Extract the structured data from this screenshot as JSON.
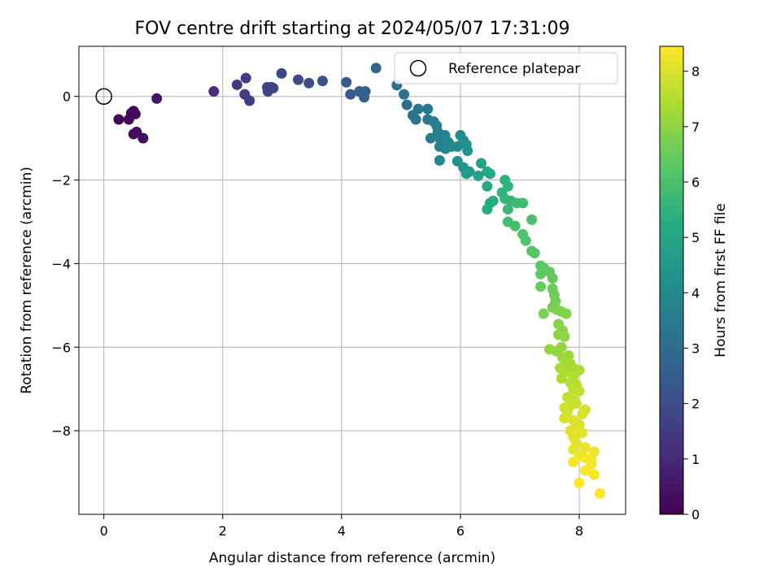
{
  "chart_data": {
    "type": "scatter",
    "title": "FOV centre drift starting at 2024/05/07 17:31:09",
    "xlabel": "Angular distance from reference (arcmin)",
    "ylabel": "Rotation from reference (arcmin)",
    "xlim": [
      -0.42,
      8.78
    ],
    "ylim": [
      -10.0,
      1.2
    ],
    "xticks": [
      0,
      2,
      4,
      6,
      8
    ],
    "yticks": [
      0,
      -2,
      -4,
      -6,
      -8
    ],
    "xtick_labels": [
      "0",
      "2",
      "4",
      "6",
      "8"
    ],
    "ytick_labels": [
      "0",
      "−2",
      "−4",
      "−6",
      "−8"
    ],
    "grid": true,
    "legend": {
      "position": "top-right",
      "entries": [
        "Reference platepar"
      ]
    },
    "reference_point": {
      "x": 0,
      "y": 0
    },
    "colorbar": {
      "label": "Hours from first FF file",
      "range": [
        0,
        8.45
      ],
      "ticks": [
        0,
        1,
        2,
        3,
        4,
        5,
        6,
        7,
        8
      ],
      "tick_labels": [
        "0",
        "1",
        "2",
        "3",
        "4",
        "5",
        "6",
        "7",
        "8"
      ],
      "colormap": "viridis"
    },
    "points": [
      {
        "x": 0.25,
        "y": -0.55,
        "t": 0.1
      },
      {
        "x": 0.42,
        "y": -0.55,
        "t": 0.12
      },
      {
        "x": 0.46,
        "y": -0.4,
        "t": 0.15
      },
      {
        "x": 0.5,
        "y": -0.35,
        "t": 0.17
      },
      {
        "x": 0.53,
        "y": -0.42,
        "t": 0.2
      },
      {
        "x": 0.5,
        "y": -0.9,
        "t": 0.22
      },
      {
        "x": 0.55,
        "y": -0.85,
        "t": 0.25
      },
      {
        "x": 0.66,
        "y": -1.0,
        "t": 0.3
      },
      {
        "x": 0.89,
        "y": -0.05,
        "t": 0.45
      },
      {
        "x": 1.85,
        "y": 0.12,
        "t": 1.1
      },
      {
        "x": 2.24,
        "y": 0.28,
        "t": 1.4
      },
      {
        "x": 2.39,
        "y": 0.44,
        "t": 1.5
      },
      {
        "x": 2.37,
        "y": 0.05,
        "t": 1.5
      },
      {
        "x": 2.45,
        "y": -0.1,
        "t": 1.55
      },
      {
        "x": 2.75,
        "y": 0.22,
        "t": 1.65
      },
      {
        "x": 2.82,
        "y": 0.22,
        "t": 1.7
      },
      {
        "x": 2.76,
        "y": 0.12,
        "t": 1.7
      },
      {
        "x": 2.85,
        "y": 0.2,
        "t": 1.75
      },
      {
        "x": 2.99,
        "y": 0.55,
        "t": 1.85
      },
      {
        "x": 3.27,
        "y": 0.4,
        "t": 1.95
      },
      {
        "x": 3.45,
        "y": 0.32,
        "t": 2.05
      },
      {
        "x": 3.68,
        "y": 0.37,
        "t": 2.15
      },
      {
        "x": 4.08,
        "y": 0.34,
        "t": 2.4
      },
      {
        "x": 4.15,
        "y": 0.05,
        "t": 2.45
      },
      {
        "x": 4.3,
        "y": 0.12,
        "t": 2.55
      },
      {
        "x": 4.4,
        "y": 0.12,
        "t": 2.6
      },
      {
        "x": 4.38,
        "y": -0.02,
        "t": 2.6
      },
      {
        "x": 4.58,
        "y": 0.68,
        "t": 2.8
      },
      {
        "x": 4.93,
        "y": 0.27,
        "t": 3.05
      },
      {
        "x": 5.05,
        "y": 0.05,
        "t": 3.1
      },
      {
        "x": 5.1,
        "y": -0.2,
        "t": 3.15
      },
      {
        "x": 5.2,
        "y": -0.45,
        "t": 3.2
      },
      {
        "x": 5.25,
        "y": -0.55,
        "t": 3.25
      },
      {
        "x": 5.29,
        "y": -0.3,
        "t": 3.3
      },
      {
        "x": 5.45,
        "y": -0.3,
        "t": 3.4
      },
      {
        "x": 5.45,
        "y": -0.55,
        "t": 3.4
      },
      {
        "x": 5.55,
        "y": -0.6,
        "t": 3.5
      },
      {
        "x": 5.6,
        "y": -0.7,
        "t": 3.55
      },
      {
        "x": 5.62,
        "y": -0.85,
        "t": 3.6
      },
      {
        "x": 5.5,
        "y": -1.0,
        "t": 3.6
      },
      {
        "x": 5.65,
        "y": -1.0,
        "t": 3.7
      },
      {
        "x": 5.7,
        "y": -1.05,
        "t": 3.75
      },
      {
        "x": 5.65,
        "y": -1.2,
        "t": 3.75
      },
      {
        "x": 5.74,
        "y": -0.93,
        "t": 3.8
      },
      {
        "x": 5.8,
        "y": -1.1,
        "t": 3.85
      },
      {
        "x": 5.75,
        "y": -1.25,
        "t": 3.85
      },
      {
        "x": 5.65,
        "y": -1.53,
        "t": 3.9
      },
      {
        "x": 5.85,
        "y": -1.2,
        "t": 3.95
      },
      {
        "x": 5.95,
        "y": -1.2,
        "t": 4.05
      },
      {
        "x": 6.0,
        "y": -0.93,
        "t": 4.1
      },
      {
        "x": 6.05,
        "y": -1.05,
        "t": 4.2
      },
      {
        "x": 6.1,
        "y": -1.15,
        "t": 4.3
      },
      {
        "x": 6.12,
        "y": -1.3,
        "t": 4.4
      },
      {
        "x": 5.95,
        "y": -1.55,
        "t": 4.4
      },
      {
        "x": 6.05,
        "y": -1.7,
        "t": 4.5
      },
      {
        "x": 6.15,
        "y": -1.8,
        "t": 4.6
      },
      {
        "x": 6.1,
        "y": -1.85,
        "t": 4.65
      },
      {
        "x": 6.3,
        "y": -1.9,
        "t": 4.8
      },
      {
        "x": 6.35,
        "y": -1.6,
        "t": 4.9
      },
      {
        "x": 6.45,
        "y": -1.8,
        "t": 5.0
      },
      {
        "x": 6.5,
        "y": -1.85,
        "t": 5.05
      },
      {
        "x": 6.45,
        "y": -2.15,
        "t": 5.1
      },
      {
        "x": 6.5,
        "y": -2.55,
        "t": 5.2
      },
      {
        "x": 6.45,
        "y": -2.7,
        "t": 5.25
      },
      {
        "x": 6.55,
        "y": -2.5,
        "t": 5.3
      },
      {
        "x": 6.75,
        "y": -2.0,
        "t": 5.45
      },
      {
        "x": 6.8,
        "y": -2.15,
        "t": 5.5
      },
      {
        "x": 6.7,
        "y": -2.3,
        "t": 5.5
      },
      {
        "x": 6.75,
        "y": -2.45,
        "t": 5.55
      },
      {
        "x": 6.85,
        "y": -2.5,
        "t": 5.6
      },
      {
        "x": 6.8,
        "y": -2.7,
        "t": 5.65
      },
      {
        "x": 6.95,
        "y": -2.55,
        "t": 5.75
      },
      {
        "x": 7.05,
        "y": -2.55,
        "t": 5.8
      },
      {
        "x": 6.8,
        "y": -3.0,
        "t": 5.85
      },
      {
        "x": 6.92,
        "y": -3.1,
        "t": 5.9
      },
      {
        "x": 7.2,
        "y": -2.95,
        "t": 6.0
      },
      {
        "x": 7.05,
        "y": -3.3,
        "t": 6.05
      },
      {
        "x": 7.1,
        "y": -3.45,
        "t": 6.1
      },
      {
        "x": 7.2,
        "y": -3.7,
        "t": 6.15
      },
      {
        "x": 7.25,
        "y": -3.75,
        "t": 6.2
      },
      {
        "x": 7.35,
        "y": -4.05,
        "t": 6.25
      },
      {
        "x": 7.4,
        "y": -4.1,
        "t": 6.3
      },
      {
        "x": 7.35,
        "y": -4.25,
        "t": 6.35
      },
      {
        "x": 7.5,
        "y": -4.2,
        "t": 6.4
      },
      {
        "x": 7.55,
        "y": -4.35,
        "t": 6.45
      },
      {
        "x": 7.35,
        "y": -4.55,
        "t": 6.5
      },
      {
        "x": 7.55,
        "y": -4.6,
        "t": 6.55
      },
      {
        "x": 7.58,
        "y": -4.75,
        "t": 6.6
      },
      {
        "x": 7.6,
        "y": -4.9,
        "t": 6.65
      },
      {
        "x": 7.55,
        "y": -5.05,
        "t": 6.7
      },
      {
        "x": 7.62,
        "y": -5.1,
        "t": 6.75
      },
      {
        "x": 7.4,
        "y": -5.2,
        "t": 6.75
      },
      {
        "x": 7.7,
        "y": -5.15,
        "t": 6.8
      },
      {
        "x": 7.78,
        "y": -5.2,
        "t": 6.85
      },
      {
        "x": 7.65,
        "y": -5.45,
        "t": 6.9
      },
      {
        "x": 7.72,
        "y": -5.6,
        "t": 6.95
      },
      {
        "x": 7.65,
        "y": -5.7,
        "t": 7.0
      },
      {
        "x": 7.75,
        "y": -5.75,
        "t": 7.0
      },
      {
        "x": 7.5,
        "y": -6.05,
        "t": 7.05
      },
      {
        "x": 7.62,
        "y": -6.1,
        "t": 7.1
      },
      {
        "x": 7.7,
        "y": -6.0,
        "t": 7.1
      },
      {
        "x": 7.72,
        "y": -6.25,
        "t": 7.15
      },
      {
        "x": 7.82,
        "y": -6.2,
        "t": 7.2
      },
      {
        "x": 7.78,
        "y": -6.35,
        "t": 7.25
      },
      {
        "x": 7.85,
        "y": -6.4,
        "t": 7.3
      },
      {
        "x": 7.68,
        "y": -6.5,
        "t": 7.3
      },
      {
        "x": 7.9,
        "y": -6.5,
        "t": 7.35
      },
      {
        "x": 8.0,
        "y": -6.55,
        "t": 7.4
      },
      {
        "x": 7.75,
        "y": -6.6,
        "t": 7.4
      },
      {
        "x": 7.7,
        "y": -6.75,
        "t": 7.45
      },
      {
        "x": 7.9,
        "y": -6.7,
        "t": 7.5
      },
      {
        "x": 7.85,
        "y": -6.85,
        "t": 7.55
      },
      {
        "x": 7.95,
        "y": -6.9,
        "t": 7.6
      },
      {
        "x": 7.9,
        "y": -7.0,
        "t": 7.65
      },
      {
        "x": 8.0,
        "y": -7.05,
        "t": 7.7
      },
      {
        "x": 7.8,
        "y": -7.2,
        "t": 7.7
      },
      {
        "x": 7.9,
        "y": -7.25,
        "t": 7.75
      },
      {
        "x": 7.95,
        "y": -7.35,
        "t": 7.8
      },
      {
        "x": 7.85,
        "y": -7.4,
        "t": 7.8
      },
      {
        "x": 7.75,
        "y": -7.45,
        "t": 7.85
      },
      {
        "x": 8.1,
        "y": -7.5,
        "t": 7.9
      },
      {
        "x": 7.8,
        "y": -7.55,
        "t": 7.9
      },
      {
        "x": 8.05,
        "y": -7.6,
        "t": 7.95
      },
      {
        "x": 7.75,
        "y": -7.7,
        "t": 7.95
      },
      {
        "x": 7.9,
        "y": -7.75,
        "t": 8.0
      },
      {
        "x": 8.0,
        "y": -7.85,
        "t": 8.0
      },
      {
        "x": 7.95,
        "y": -7.9,
        "t": 8.05
      },
      {
        "x": 7.85,
        "y": -8.0,
        "t": 8.05
      },
      {
        "x": 8.05,
        "y": -8.05,
        "t": 8.1
      },
      {
        "x": 7.9,
        "y": -8.15,
        "t": 8.1
      },
      {
        "x": 7.95,
        "y": -8.3,
        "t": 8.15
      },
      {
        "x": 8.1,
        "y": -8.4,
        "t": 8.2
      },
      {
        "x": 7.9,
        "y": -8.45,
        "t": 8.2
      },
      {
        "x": 8.25,
        "y": -8.5,
        "t": 8.25
      },
      {
        "x": 8.0,
        "y": -8.6,
        "t": 8.25
      },
      {
        "x": 8.1,
        "y": -8.65,
        "t": 8.3
      },
      {
        "x": 8.2,
        "y": -8.7,
        "t": 8.3
      },
      {
        "x": 7.9,
        "y": -8.75,
        "t": 8.35
      },
      {
        "x": 8.2,
        "y": -8.8,
        "t": 8.35
      },
      {
        "x": 8.1,
        "y": -8.95,
        "t": 8.4
      },
      {
        "x": 8.25,
        "y": -9.05,
        "t": 8.4
      },
      {
        "x": 8.0,
        "y": -9.25,
        "t": 8.42
      },
      {
        "x": 8.35,
        "y": -9.5,
        "t": 8.45
      }
    ]
  }
}
